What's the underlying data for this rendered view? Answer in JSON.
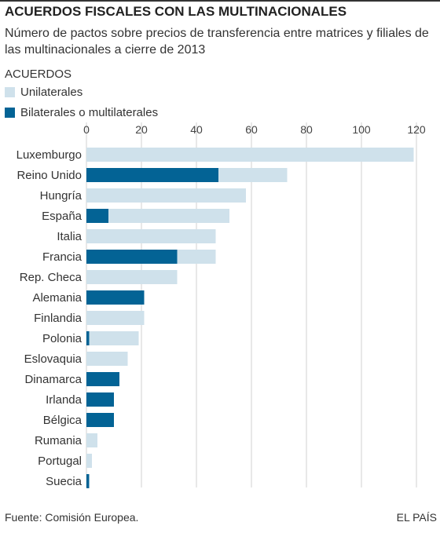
{
  "header": {
    "title": "ACUERDOS FISCALES CON LAS MULTINACIONALES",
    "subtitle": "Número de pactos sobre precios de transferencia entre matrices y filiales de las multinacionales a cierre de 2013"
  },
  "legend": {
    "title": "ACUERDOS",
    "items": [
      {
        "label": "Unilaterales",
        "color": "#cfe1eb"
      },
      {
        "label": "Bilaterales o multilaterales",
        "color": "#036395"
      }
    ]
  },
  "chart_data": {
    "type": "bar",
    "orientation": "horizontal",
    "stacked": true,
    "categories": [
      "Luxemburgo",
      "Reino Unido",
      "Hungría",
      "España",
      "Italia",
      "Francia",
      "Rep. Checa",
      "Alemania",
      "Finlandia",
      "Polonia",
      "Eslovaquia",
      "Dinamarca",
      "Irlanda",
      "Bélgica",
      "Rumania",
      "Portugal",
      "Suecia"
    ],
    "series": [
      {
        "name": "Bilaterales o multilaterales",
        "color": "#036395",
        "values": [
          0,
          48,
          0,
          8,
          0,
          33,
          0,
          21,
          0,
          1,
          0,
          12,
          10,
          10,
          0,
          0,
          1
        ]
      },
      {
        "name": "Unilaterales",
        "color": "#cfe1eb",
        "values": [
          119,
          25,
          58,
          44,
          47,
          14,
          33,
          0,
          21,
          18,
          15,
          0,
          0,
          0,
          4,
          2,
          0
        ]
      }
    ],
    "xticks": [
      0,
      20,
      40,
      60,
      80,
      100,
      120
    ],
    "xlim": [
      0,
      120
    ],
    "grid": true,
    "tick_position": "top"
  },
  "footer": {
    "source": "Fuente: Comisión Europea.",
    "brand": "EL PAÍS"
  }
}
